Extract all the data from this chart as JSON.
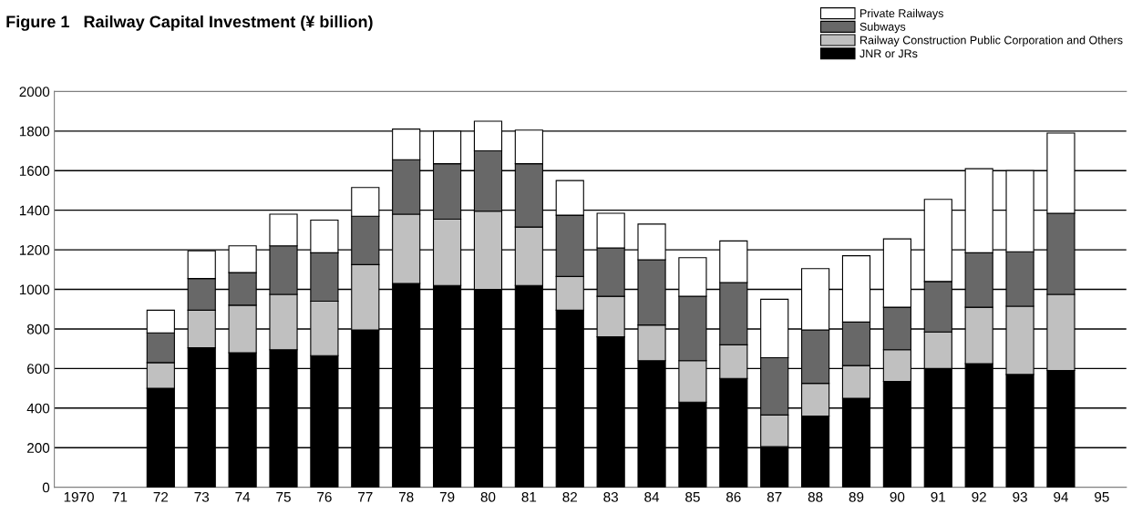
{
  "chart_data": {
    "type": "bar",
    "stacked": true,
    "title": "Figure 1   Railway Capital Investment (¥ billion)",
    "categories": [
      "1970",
      "71",
      "72",
      "73",
      "74",
      "75",
      "76",
      "77",
      "78",
      "79",
      "80",
      "81",
      "82",
      "83",
      "84",
      "85",
      "86",
      "87",
      "88",
      "89",
      "90",
      "91",
      "92",
      "93",
      "94",
      "95"
    ],
    "series": [
      {
        "name": "JNR or JRs",
        "color": "#000000",
        "values": [
          null,
          null,
          500,
          705,
          680,
          695,
          665,
          795,
          1030,
          1020,
          1000,
          1020,
          895,
          760,
          640,
          430,
          550,
          205,
          360,
          450,
          535,
          600,
          625,
          570,
          590,
          null
        ]
      },
      {
        "name": "Railway Construction Public Corporation and Others",
        "color": "#c0c0c0",
        "values": [
          null,
          null,
          130,
          190,
          240,
          280,
          275,
          330,
          350,
          335,
          395,
          295,
          170,
          205,
          180,
          210,
          170,
          160,
          165,
          165,
          160,
          185,
          285,
          345,
          385,
          null
        ]
      },
      {
        "name": "Subways",
        "color": "#686868",
        "values": [
          null,
          null,
          150,
          160,
          165,
          245,
          245,
          245,
          275,
          280,
          305,
          320,
          310,
          245,
          330,
          325,
          315,
          290,
          270,
          220,
          215,
          255,
          275,
          275,
          410,
          null
        ]
      },
      {
        "name": "Private Railways",
        "color": "#ffffff",
        "values": [
          null,
          null,
          115,
          140,
          135,
          160,
          165,
          145,
          155,
          165,
          150,
          170,
          175,
          175,
          180,
          195,
          210,
          295,
          310,
          335,
          345,
          415,
          425,
          410,
          405,
          null
        ]
      }
    ],
    "ylim": [
      0,
      2000
    ],
    "yticks": [
      0,
      200,
      400,
      600,
      800,
      1000,
      1200,
      1400,
      1600,
      1800,
      2000
    ],
    "grid": "y",
    "legend": "top right"
  }
}
